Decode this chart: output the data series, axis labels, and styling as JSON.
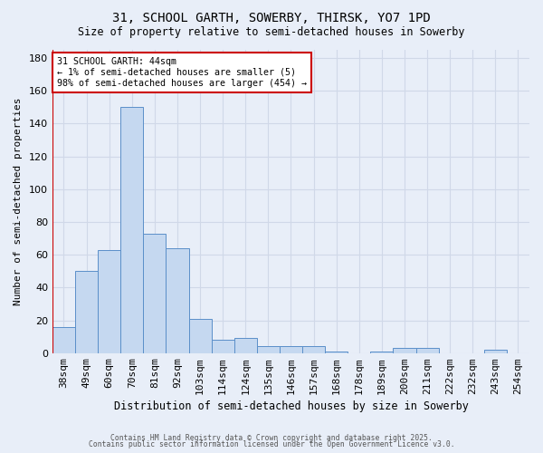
{
  "title_line1": "31, SCHOOL GARTH, SOWERBY, THIRSK, YO7 1PD",
  "title_line2": "Size of property relative to semi-detached houses in Sowerby",
  "xlabel": "Distribution of semi-detached houses by size in Sowerby",
  "ylabel": "Number of semi-detached properties",
  "categories": [
    "38sqm",
    "49sqm",
    "60sqm",
    "70sqm",
    "81sqm",
    "92sqm",
    "103sqm",
    "114sqm",
    "124sqm",
    "135sqm",
    "146sqm",
    "157sqm",
    "168sqm",
    "178sqm",
    "189sqm",
    "200sqm",
    "211sqm",
    "222sqm",
    "232sqm",
    "243sqm",
    "254sqm"
  ],
  "values": [
    16,
    50,
    63,
    150,
    73,
    64,
    21,
    8,
    9,
    4,
    4,
    4,
    1,
    0,
    1,
    3,
    3,
    0,
    0,
    2,
    0
  ],
  "bar_color": "#c5d8f0",
  "bar_edge_color": "#5b8fc9",
  "annotation_text": "31 SCHOOL GARTH: 44sqm\n← 1% of semi-detached houses are smaller (5)\n98% of semi-detached houses are larger (454) →",
  "annotation_box_color": "#ffffff",
  "annotation_box_edge_color": "#cc0000",
  "vline_color": "#cc0000",
  "ylim": [
    0,
    185
  ],
  "yticks": [
    0,
    20,
    40,
    60,
    80,
    100,
    120,
    140,
    160,
    180
  ],
  "background_color": "#e8eef8",
  "plot_bg_color": "#e8eef8",
  "grid_color": "#d0d8e8",
  "footer_line1": "Contains HM Land Registry data © Crown copyright and database right 2025.",
  "footer_line2": "Contains public sector information licensed under the Open Government Licence v3.0."
}
